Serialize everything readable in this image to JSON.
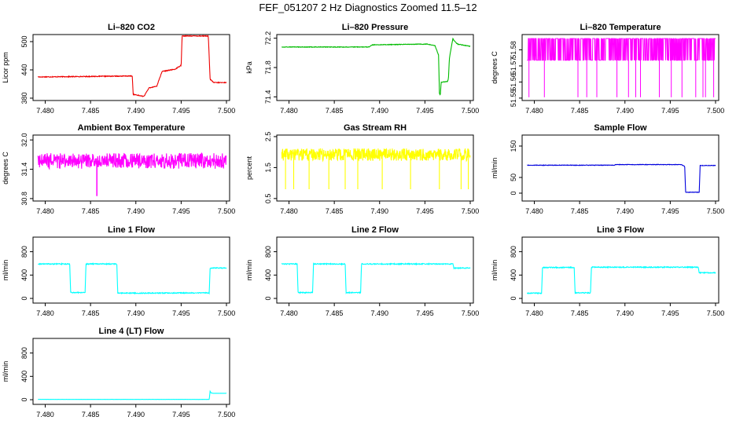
{
  "page": {
    "title": "FEF_051207  2 Hz Diagnostics Zoomed 11.5–12"
  },
  "chart_data": [
    {
      "type": "line",
      "title": "Li–820 CO2",
      "ylabel": "Licor ppm",
      "color": "#ee0000",
      "xlim": [
        7.479,
        7.5
      ],
      "ylim": [
        375,
        515
      ],
      "yticks": [
        "380",
        "440",
        "500"
      ],
      "yticks_v": [
        380,
        440,
        500
      ],
      "xticks": [
        "7.480",
        "7.485",
        "7.490",
        "7.495",
        "7.500"
      ],
      "noise": 0.8,
      "spikes": [],
      "x": [
        7.4792,
        7.4896,
        7.4897,
        7.4908,
        7.4909,
        7.4915,
        7.4916,
        7.4922,
        7.4923,
        7.4929,
        7.493,
        7.4942,
        7.4943,
        7.495,
        7.4951,
        7.498,
        7.4982,
        7.4986,
        7.5
      ],
      "y": [
        425,
        427,
        388,
        384,
        384,
        403,
        402,
        405,
        405,
        437,
        437,
        441,
        441,
        450,
        512,
        512,
        420,
        413,
        413
      ]
    },
    {
      "type": "line",
      "title": "Li–820 Pressure",
      "ylabel": "kPa",
      "color": "#00bb00",
      "xlim": [
        7.479,
        7.5
      ],
      "ylim": [
        71.35,
        72.25
      ],
      "yticks": [
        "71.4",
        "71.8",
        "72.2"
      ],
      "yticks_v": [
        71.4,
        71.8,
        72.2
      ],
      "xticks": [
        "7.480",
        "7.485",
        "7.490",
        "7.495",
        "7.500"
      ],
      "noise": 0.004,
      "spikes": [],
      "x": [
        7.4792,
        7.4888,
        7.4892,
        7.4952,
        7.4961,
        7.4965,
        7.4966,
        7.4967,
        7.4968,
        7.4975,
        7.4976,
        7.4977,
        7.4979,
        7.4981,
        7.4982,
        7.4986,
        7.5
      ],
      "y": [
        72.08,
        72.08,
        72.11,
        72.12,
        72.1,
        71.97,
        71.45,
        71.42,
        71.6,
        71.61,
        71.65,
        71.92,
        72.07,
        72.2,
        72.17,
        72.12,
        72.09
      ]
    },
    {
      "type": "line",
      "title": "Li–820 Temperature",
      "ylabel": "degrees C",
      "color": "#ff00ff",
      "xlim": [
        7.479,
        7.5
      ],
      "ylim": [
        51.5485,
        51.5895
      ],
      "yticks": [
        "51.55",
        "51.56",
        "51.57",
        "51.58"
      ],
      "yticks_v": [
        51.55,
        51.56,
        51.57,
        51.58
      ],
      "xticks": [
        "7.480",
        "7.485",
        "7.490",
        "7.495",
        "7.500"
      ],
      "noise": 0,
      "pattern": "binary",
      "levels": [
        51.587,
        51.5735
      ],
      "spike_level": 51.5505,
      "spikes": [
        7.4794,
        7.4811,
        7.4848,
        7.4858,
        7.4869,
        7.4891,
        7.4904,
        7.4912,
        7.4917,
        7.4938,
        7.4951,
        7.4963,
        7.4978,
        7.4986,
        7.4989,
        7.4998
      ],
      "x": [
        7.4792,
        7.5
      ],
      "y": [
        51.587,
        51.587
      ]
    },
    {
      "type": "line",
      "title": "Ambient Box Temperature",
      "ylabel": "degrees C",
      "color": "#ff00ff",
      "xlim": [
        7.479,
        7.5
      ],
      "ylim": [
        30.75,
        32.1
      ],
      "yticks": [
        "30.8",
        "31.4",
        "32.0"
      ],
      "yticks_v": [
        30.8,
        31.4,
        32.0
      ],
      "xticks": [
        "7.480",
        "7.485",
        "7.490",
        "7.495",
        "7.500"
      ],
      "noise": 0.16,
      "spike_level": 30.85,
      "spikes": [
        7.4857
      ],
      "x": [
        7.4792,
        7.5
      ],
      "y": [
        31.57,
        31.57
      ]
    },
    {
      "type": "line",
      "title": "Gas Stream RH",
      "ylabel": "percent",
      "color": "#ffff00",
      "xlim": [
        7.479,
        7.5
      ],
      "ylim": [
        0.42,
        2.55
      ],
      "yticks": [
        "0.5",
        "1.5",
        "2.5"
      ],
      "yticks_v": [
        0.5,
        1.5,
        2.5
      ],
      "xticks": [
        "7.480",
        "7.485",
        "7.490",
        "7.495",
        "7.500"
      ],
      "noise": 0.2,
      "spike_level": 0.8,
      "spikes": [
        7.4796,
        7.4805,
        7.4822,
        7.4844,
        7.4862,
        7.4876,
        7.4903,
        7.4934,
        7.4966,
        7.499,
        7.4998
      ],
      "x": [
        7.4792,
        7.5
      ],
      "y": [
        1.92,
        1.92
      ]
    },
    {
      "type": "line",
      "title": "Sample Flow",
      "ylabel": "ml/min",
      "color": "#0000dd",
      "xlim": [
        7.479,
        7.5
      ],
      "ylim": [
        -25,
        185
      ],
      "yticks": [
        "0",
        "50",
        "150"
      ],
      "yticks_v": [
        0,
        50,
        150
      ],
      "xticks": [
        "7.480",
        "7.485",
        "7.490",
        "7.495",
        "7.500"
      ],
      "noise": 0.8,
      "spikes": [],
      "x": [
        7.4792,
        7.4888,
        7.489,
        7.4962,
        7.4966,
        7.4967,
        7.4982,
        7.4983,
        7.5
      ],
      "y": [
        89,
        89,
        91,
        91,
        85,
        3,
        3,
        88,
        88
      ]
    },
    {
      "type": "line",
      "title": "Line 1 Flow",
      "ylabel": "ml/min",
      "color": "#00ffff",
      "xlim": [
        7.479,
        7.5
      ],
      "ylim": [
        -80,
        1050
      ],
      "yticks": [
        "0",
        "400",
        "800"
      ],
      "yticks_v": [
        0,
        400,
        800
      ],
      "xticks": [
        "7.480",
        "7.485",
        "7.490",
        "7.495",
        "7.500"
      ],
      "noise": 8,
      "x": [
        7.4792,
        7.4827,
        7.4828,
        7.4844,
        7.4845,
        7.4879,
        7.488,
        7.4981,
        7.4982,
        7.5
      ],
      "y": [
        590,
        590,
        100,
        100,
        590,
        590,
        90,
        95,
        520,
        520
      ]
    },
    {
      "type": "line",
      "title": "Line 2 Flow",
      "ylabel": "ml/min",
      "color": "#00ffff",
      "xlim": [
        7.479,
        7.5
      ],
      "ylim": [
        -80,
        1050
      ],
      "yticks": [
        "0",
        "400",
        "800"
      ],
      "yticks_v": [
        0,
        400,
        800
      ],
      "xticks": [
        "7.480",
        "7.485",
        "7.490",
        "7.495",
        "7.500"
      ],
      "noise": 8,
      "x": [
        7.4792,
        7.4809,
        7.481,
        7.4826,
        7.4827,
        7.4862,
        7.4863,
        7.4879,
        7.488,
        7.4981,
        7.4982,
        7.5
      ],
      "y": [
        590,
        590,
        100,
        100,
        590,
        590,
        100,
        100,
        590,
        590,
        520,
        520
      ]
    },
    {
      "type": "line",
      "title": "Line 3 Flow",
      "ylabel": "ml/min",
      "color": "#00ffff",
      "xlim": [
        7.479,
        7.5
      ],
      "ylim": [
        -80,
        1050
      ],
      "yticks": [
        "0",
        "400",
        "800"
      ],
      "yticks_v": [
        0,
        400,
        800
      ],
      "xticks": [
        "7.480",
        "7.485",
        "7.490",
        "7.495",
        "7.500"
      ],
      "noise": 8,
      "x": [
        7.4792,
        7.4808,
        7.4809,
        7.4844,
        7.4845,
        7.4862,
        7.4863,
        7.4981,
        7.4982,
        7.5
      ],
      "y": [
        90,
        90,
        530,
        530,
        95,
        95,
        535,
        535,
        440,
        440
      ]
    },
    {
      "type": "line",
      "title": "Line 4 (LT) Flow",
      "ylabel": "ml/min",
      "color": "#00ffff",
      "xlim": [
        7.479,
        7.5
      ],
      "ylim": [
        -80,
        1050
      ],
      "yticks": [
        "0",
        "400",
        "800"
      ],
      "yticks_v": [
        0,
        400,
        800
      ],
      "xticks": [
        "7.480",
        "7.485",
        "7.490",
        "7.495",
        "7.500"
      ],
      "noise": 1,
      "x": [
        7.4792,
        7.4981,
        7.4982,
        7.4983,
        7.4986,
        7.5
      ],
      "y": [
        5,
        5,
        150,
        115,
        110,
        110
      ]
    }
  ]
}
